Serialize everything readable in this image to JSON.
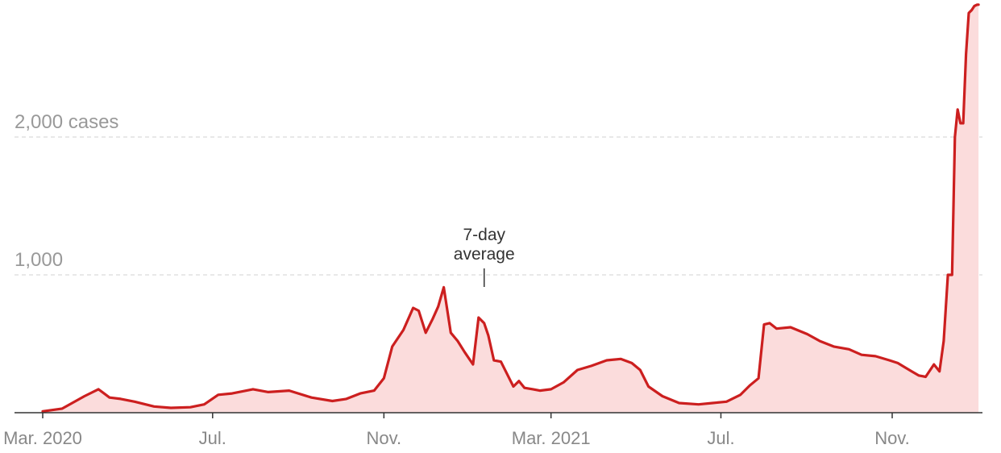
{
  "chart_data": {
    "type": "area",
    "title": "",
    "xlabel": "",
    "ylabel": "",
    "ylim": [
      0,
      3000
    ],
    "grid": true,
    "y_ticks": [
      {
        "value": 1000,
        "label": "1,000"
      },
      {
        "value": 2000,
        "label": "2,000 cases"
      }
    ],
    "x_ticks": [
      {
        "date": "2020-03-01",
        "label": "Mar. 2020"
      },
      {
        "date": "2020-07-01",
        "label": "Jul."
      },
      {
        "date": "2020-11-01",
        "label": "Nov."
      },
      {
        "date": "2021-03-01",
        "label": "Mar. 2021"
      },
      {
        "date": "2021-07-01",
        "label": "Jul."
      },
      {
        "date": "2021-11-01",
        "label": "Nov."
      }
    ],
    "annotation": {
      "line1": "7-day",
      "line2": "average",
      "date": "2021-01-12"
    },
    "colors": {
      "line": "#cc1f1f",
      "fill": "#fbdcdc",
      "grid": "#d9d9d9",
      "axis": "#333333"
    },
    "series": [
      {
        "x": [
          "2020-03-01",
          "2020-03-15",
          "2020-03-31",
          "2020-04-10",
          "2020-04-18",
          "2020-04-26",
          "2020-05-06",
          "2020-05-20",
          "2020-06-01",
          "2020-06-15",
          "2020-06-25",
          "2020-07-05",
          "2020-07-15",
          "2020-07-30",
          "2020-08-10",
          "2020-08-25",
          "2020-09-10",
          "2020-09-25",
          "2020-10-05",
          "2020-10-15",
          "2020-10-25",
          "2020-11-01",
          "2020-11-07",
          "2020-11-15",
          "2020-11-22",
          "2020-11-26",
          "2020-12-01",
          "2020-12-06",
          "2020-12-10",
          "2020-12-14",
          "2020-12-19",
          "2020-12-24",
          "2020-12-29",
          "2021-01-04",
          "2021-01-08",
          "2021-01-12",
          "2021-01-15",
          "2021-01-19",
          "2021-01-24",
          "2021-01-29",
          "2021-02-02",
          "2021-02-06",
          "2021-02-10",
          "2021-02-16",
          "2021-02-21",
          "2021-03-01",
          "2021-03-10",
          "2021-03-20",
          "2021-03-30",
          "2021-04-10",
          "2021-04-20",
          "2021-04-28",
          "2021-05-04",
          "2021-05-10",
          "2021-05-20",
          "2021-06-01",
          "2021-06-15",
          "2021-06-25",
          "2021-07-05",
          "2021-07-15",
          "2021-07-22",
          "2021-07-28",
          "2021-08-01",
          "2021-08-05",
          "2021-08-10",
          "2021-08-20",
          "2021-09-01",
          "2021-09-10",
          "2021-09-20",
          "2021-10-01",
          "2021-10-10",
          "2021-10-20",
          "2021-10-30",
          "2021-11-05",
          "2021-11-10",
          "2021-11-15",
          "2021-11-20",
          "2021-11-25",
          "2021-12-01",
          "2021-12-05",
          "2021-12-08",
          "2021-12-11",
          "2021-12-14",
          "2021-12-16",
          "2021-12-18",
          "2021-12-20",
          "2021-12-22",
          "2021-12-24",
          "2021-12-26",
          "2021-12-28",
          "2021-12-30",
          "2022-01-01",
          "2022-01-02"
        ],
        "values": [
          10,
          30,
          120,
          170,
          110,
          100,
          80,
          45,
          35,
          40,
          60,
          130,
          140,
          170,
          150,
          160,
          110,
          85,
          100,
          140,
          160,
          250,
          480,
          600,
          760,
          740,
          580,
          680,
          770,
          910,
          580,
          520,
          440,
          350,
          690,
          650,
          560,
          380,
          370,
          270,
          190,
          230,
          180,
          170,
          160,
          170,
          220,
          310,
          340,
          380,
          390,
          360,
          310,
          190,
          120,
          70,
          60,
          70,
          80,
          130,
          200,
          250,
          640,
          650,
          610,
          620,
          570,
          520,
          480,
          460,
          420,
          410,
          380,
          360,
          330,
          300,
          270,
          260,
          350,
          300,
          520,
          1000,
          1000,
          2000,
          2200,
          2100,
          2100,
          2600,
          2900,
          2920,
          2950,
          2960,
          2960
        ]
      }
    ]
  }
}
